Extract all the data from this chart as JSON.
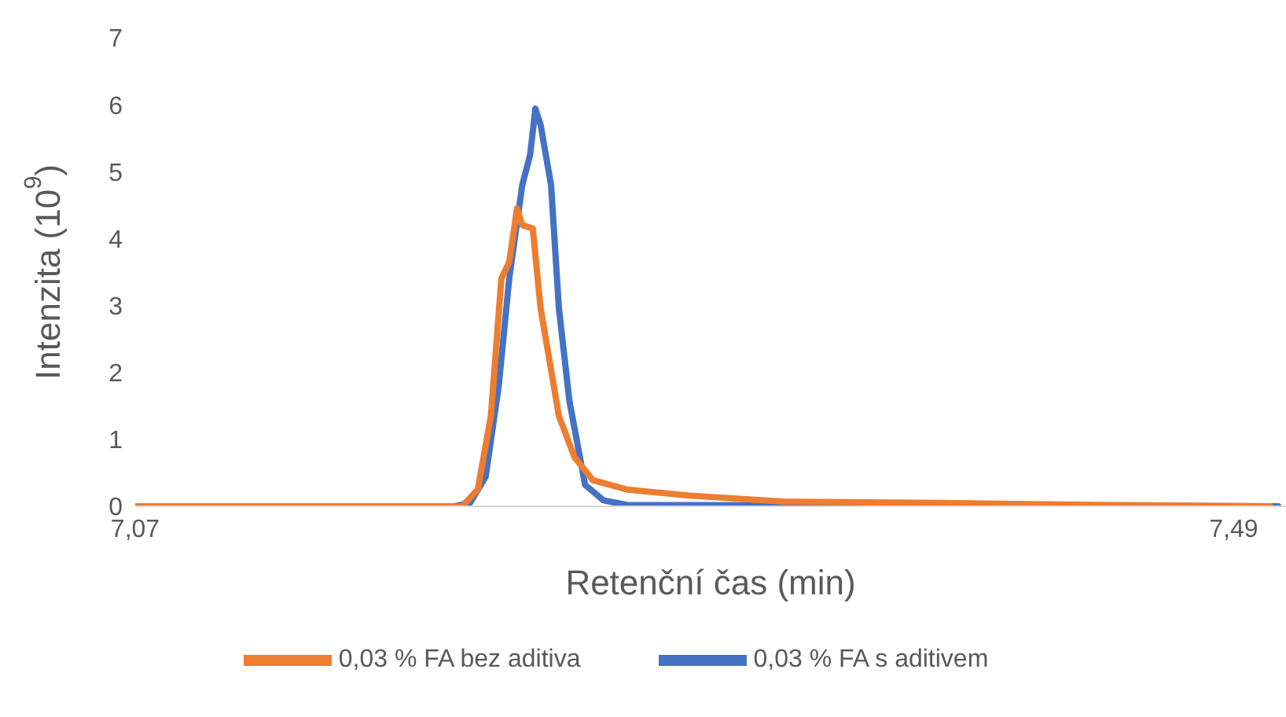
{
  "chart_data": {
    "type": "line",
    "xlabel": "Retenční čas (min)",
    "ylabel": "Intenzita (10$^{9}$)",
    "xlim": [
      7.07,
      7.51
    ],
    "xticks": [
      {
        "value": 7.07,
        "label": "7,07"
      },
      {
        "value": 7.49,
        "label": "7,49"
      }
    ],
    "ylim": [
      0,
      7
    ],
    "yticks": [
      0,
      1,
      2,
      3,
      4,
      5,
      6,
      7
    ],
    "grid": false,
    "legend": "bottom",
    "marker": "none",
    "line_style": "solid",
    "series": [
      {
        "name": "0,03 % FA s aditivem",
        "color": "#4472c4",
        "x": [
          7.07,
          7.192,
          7.198,
          7.204,
          7.209,
          7.213,
          7.218,
          7.221,
          7.223,
          7.225,
          7.229,
          7.232,
          7.236,
          7.242,
          7.249,
          7.258,
          7.507
        ],
        "values": [
          0,
          0,
          0.05,
          0.44,
          1.8,
          3.4,
          4.8,
          5.25,
          5.94,
          5.7,
          4.8,
          2.96,
          1.58,
          0.32,
          0.09,
          0.02,
          0
        ]
      },
      {
        "name": "0,03 % FA bez aditiva",
        "color": "#ed7d31",
        "x": [
          7.07,
          7.195,
          7.201,
          7.206,
          7.21,
          7.213,
          7.216,
          7.218,
          7.222,
          7.225,
          7.228,
          7.232,
          7.238,
          7.245,
          7.258,
          7.282,
          7.318,
          7.378,
          7.438,
          7.504
        ],
        "values": [
          0,
          0,
          0.25,
          1.35,
          3.4,
          3.65,
          4.45,
          4.2,
          4.15,
          2.96,
          2.27,
          1.35,
          0.73,
          0.39,
          0.25,
          0.16,
          0.07,
          0.05,
          0.02,
          0
        ]
      }
    ]
  }
}
